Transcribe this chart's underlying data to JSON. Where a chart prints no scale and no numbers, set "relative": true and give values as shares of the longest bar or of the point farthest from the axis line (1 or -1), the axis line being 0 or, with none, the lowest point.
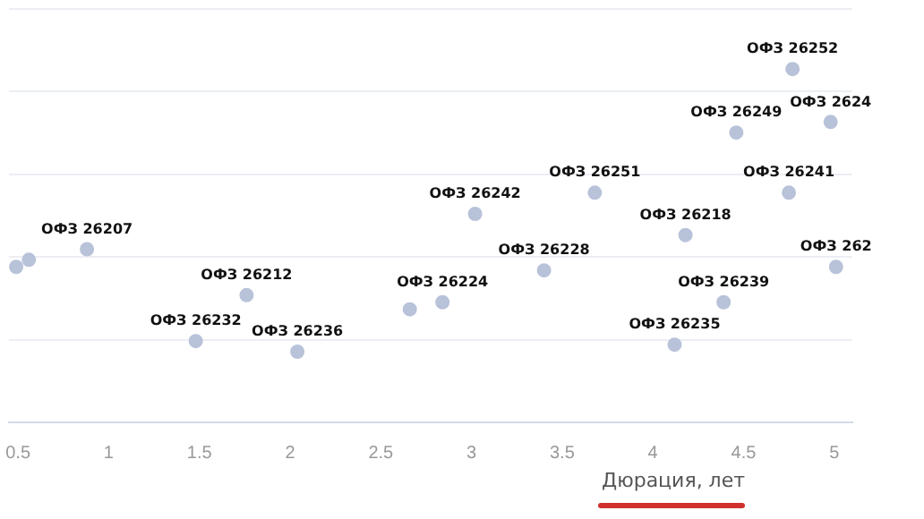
{
  "chart_data": {
    "type": "scatter",
    "relative": true,
    "xlabel": "Дюрация, лет",
    "x": [
      0.49,
      0.56,
      0.88,
      1.48,
      1.76,
      2.04,
      2.66,
      2.84,
      3.02,
      3.4,
      3.68,
      4.12,
      4.18,
      4.39,
      4.46,
      4.75,
      4.77,
      4.98,
      5.01
    ],
    "series": [
      {
        "color": "#b8c2d9",
        "values": [
          0.44,
          0.46,
          0.49,
          0.23,
          0.36,
          0.2,
          0.32,
          0.34,
          0.59,
          0.43,
          0.65,
          0.22,
          0.53,
          0.34,
          0.82,
          0.65,
          1.0,
          0.85,
          0.44
        ]
      }
    ],
    "xlim": [
      0.45,
      5.1
    ],
    "xticks": [
      0.5,
      1,
      1.5,
      2,
      2.5,
      3,
      3.5,
      4,
      4.5,
      5
    ],
    "grid": "y",
    "marker": "circle",
    "legend": false,
    "annotations": [
      {
        "text": "ОФЗ 26207",
        "x": 0.88,
        "y": 0.49
      },
      {
        "text": "ОФЗ 26232",
        "x": 1.48,
        "y": 0.23
      },
      {
        "text": "ОФЗ 26212",
        "x": 1.76,
        "y": 0.36
      },
      {
        "text": "ОФЗ 26236",
        "x": 2.04,
        "y": 0.2
      },
      {
        "text": "ОФЗ 26224",
        "x": 2.84,
        "y": 0.34
      },
      {
        "text": "ОФЗ 26242",
        "x": 3.02,
        "y": 0.59
      },
      {
        "text": "ОФЗ 26228",
        "x": 3.4,
        "y": 0.43
      },
      {
        "text": "ОФЗ 26251",
        "x": 3.68,
        "y": 0.65
      },
      {
        "text": "ОФЗ 26235",
        "x": 4.12,
        "y": 0.22
      },
      {
        "text": "ОФЗ 26218",
        "x": 4.18,
        "y": 0.53
      },
      {
        "text": "ОФЗ 26239",
        "x": 4.39,
        "y": 0.34
      },
      {
        "text": "ОФЗ 26249",
        "x": 4.46,
        "y": 0.82
      },
      {
        "text": "ОФЗ 26241",
        "x": 4.75,
        "y": 0.65
      },
      {
        "text": "ОФЗ 26252",
        "x": 4.77,
        "y": 1.0
      },
      {
        "text": "ОФЗ 2624",
        "x": 4.98,
        "y": 0.85
      },
      {
        "text": "ОФЗ 262",
        "x": 5.01,
        "y": 0.44
      }
    ]
  }
}
